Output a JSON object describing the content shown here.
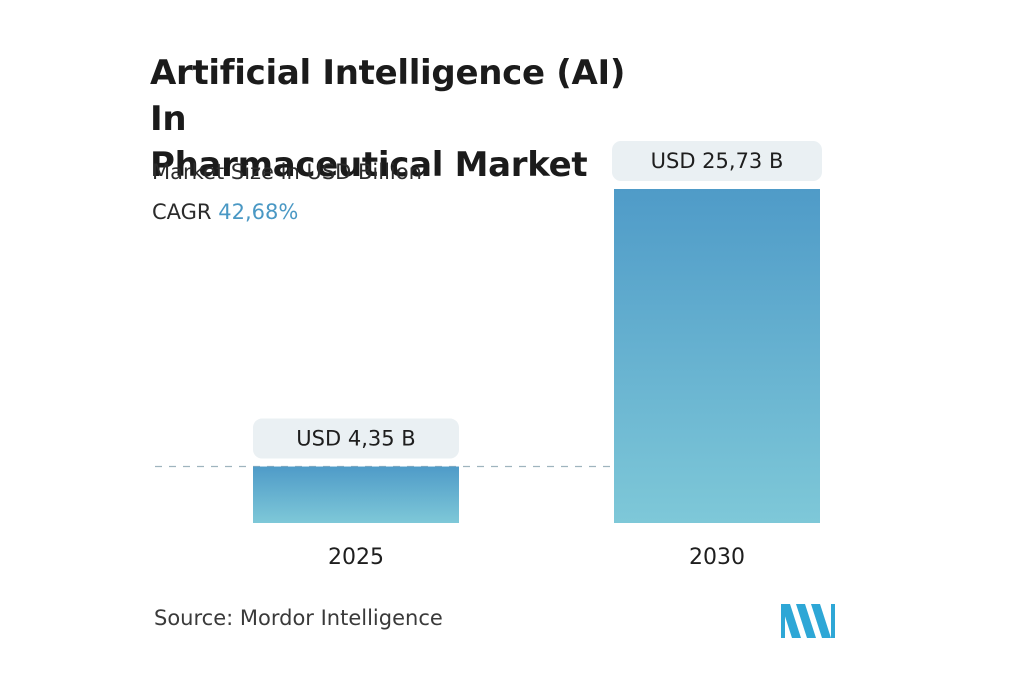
{
  "title_lines": [
    "Artificial Intelligence (AI) In",
    "Pharmaceutical Market"
  ],
  "subtitle": "Market Size in USD Billion",
  "cagr": {
    "label": "CAGR",
    "value": "42,68%"
  },
  "source": {
    "label": "Source:",
    "name": "Mordor Intelligence"
  },
  "colors": {
    "bar_top": "#4f9bc8",
    "bar_bottom": "#7ec8d8",
    "accent": "#4a98c4",
    "label_bg": "#eaf0f3",
    "logo": "#2ea7d6"
  },
  "logo_icon": "mordor-intelligence-logo-icon",
  "chart_data": {
    "type": "bar",
    "categories": [
      "2025",
      "2030"
    ],
    "values": [
      4.35,
      25.73
    ],
    "data_labels": [
      "USD 4,35 B",
      "USD 25,73 B"
    ],
    "unit": "USD Billion",
    "ylim": [
      0,
      25.73
    ],
    "grid": false,
    "legend": "none"
  }
}
